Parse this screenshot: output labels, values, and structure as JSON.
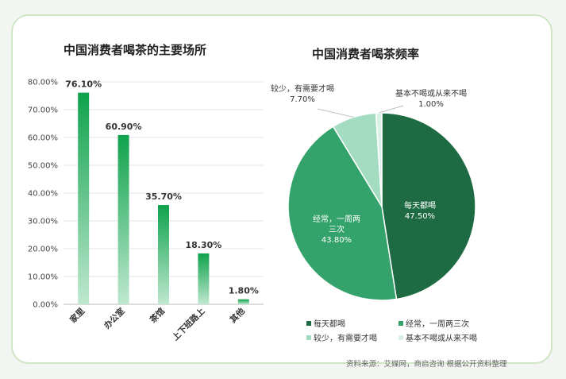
{
  "bar_title": "中国消费者喝茶的主要场所",
  "pie_title": "中国消费者喝茶频率",
  "source": "资料来源：艾媒网，商启咨询 根据公开资料整理",
  "colors": {
    "dark_green": "#1e6b43",
    "green": "#34a36b",
    "light_green": "#a3dcc0",
    "pale_green": "#d9f1e6",
    "bar": "#16a54f"
  },
  "chart_data": [
    {
      "type": "bar",
      "title": "中国消费者喝茶的主要场所",
      "categories": [
        "家里",
        "办公室",
        "茶馆",
        "上下班路上",
        "其他"
      ],
      "values": [
        76.1,
        60.9,
        35.7,
        18.3,
        1.8
      ],
      "value_labels": [
        "76.10%",
        "60.90%",
        "35.70%",
        "18.30%",
        "1.80%"
      ],
      "y_ticks": [
        "0.00%",
        "10.00%",
        "20.00%",
        "30.00%",
        "40.00%",
        "50.00%",
        "60.00%",
        "70.00%",
        "80.00%"
      ],
      "ylim": [
        0,
        80
      ],
      "grid": true
    },
    {
      "type": "pie",
      "title": "中国消费者喝茶频率",
      "slices": [
        {
          "label": "每天都喝",
          "value": 47.5,
          "value_label": "47.50%",
          "color": "#1e6b43"
        },
        {
          "label": "经常，一周两三次",
          "value": 43.8,
          "value_label": "43.80%",
          "color": "#34a36b"
        },
        {
          "label": "较少，有需要才喝",
          "value": 7.7,
          "value_label": "7.70%",
          "color": "#a3dcc0"
        },
        {
          "label": "基本不喝或从来不喝",
          "value": 1.0,
          "value_label": "1.00%",
          "color": "#d9f1e6"
        }
      ],
      "inner_labels": [
        {
          "lines": [
            "每天都喝",
            "47.50%"
          ]
        },
        {
          "lines": [
            "经常，一周两",
            "三次",
            "43.80%"
          ]
        }
      ],
      "outer_labels": [
        {
          "lines": [
            "较少，有需要才喝",
            "7.70%"
          ]
        },
        {
          "lines": [
            "基本不喝或从来不喝",
            "1.00%"
          ]
        }
      ],
      "legend": [
        "每天都喝",
        "经常，一周两三次",
        "较少，有需要才喝",
        "基本不喝或从来不喝"
      ],
      "legend_position": "bottom"
    }
  ]
}
